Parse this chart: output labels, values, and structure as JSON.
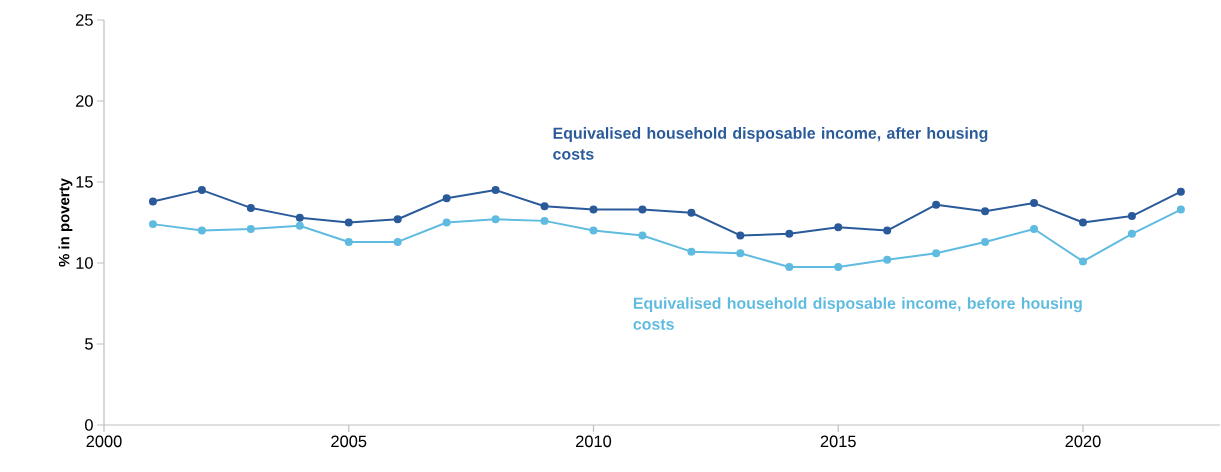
{
  "chart_data": {
    "type": "line",
    "ylabel": "% in poverty",
    "x": [
      2001,
      2002,
      2003,
      2004,
      2005,
      2006,
      2007,
      2008,
      2009,
      2010,
      2011,
      2012,
      2013,
      2014,
      2015,
      2016,
      2017,
      2018,
      2019,
      2020,
      2021,
      2022
    ],
    "series": [
      {
        "name": "Equivalised household disposable income, after housing costs",
        "color": "#2a5a9a",
        "values": [
          13.8,
          14.5,
          13.4,
          12.8,
          12.5,
          12.7,
          14.0,
          14.5,
          13.5,
          13.3,
          13.3,
          13.1,
          11.7,
          11.8,
          12.2,
          12.0,
          13.6,
          13.2,
          13.7,
          12.5,
          12.9,
          14.4
        ]
      },
      {
        "name": "Equivalised household disposable income, before housing costs",
        "color": "#5fbbdf",
        "values": [
          12.4,
          12.0,
          12.1,
          12.3,
          11.3,
          11.3,
          12.5,
          12.7,
          12.6,
          12.0,
          11.7,
          10.7,
          10.6,
          9.75,
          9.75,
          10.2,
          10.6,
          11.3,
          12.1,
          10.1,
          11.8,
          13.3
        ]
      }
    ],
    "xlim": [
      2000,
      2022.8
    ],
    "ylim": [
      0,
      25
    ],
    "xticks": [
      2000,
      2005,
      2010,
      2015,
      2020
    ],
    "yticks": [
      0,
      5,
      10,
      15,
      20,
      25
    ],
    "grid": false,
    "legend": false,
    "marker": "circle",
    "line_style": "solid"
  }
}
